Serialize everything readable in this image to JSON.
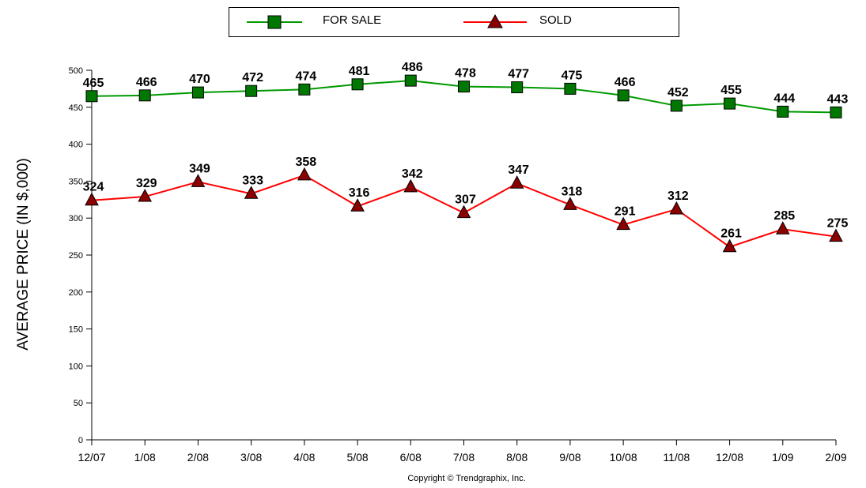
{
  "chart_data": {
    "type": "line",
    "ylabel": "AVERAGE PRICE (IN $,000)",
    "ylim": [
      0,
      500
    ],
    "yticks": [
      0,
      50,
      100,
      150,
      200,
      250,
      300,
      350,
      400,
      450,
      500
    ],
    "categories": [
      "12/07",
      "1/08",
      "2/08",
      "3/08",
      "4/08",
      "5/08",
      "6/08",
      "7/08",
      "8/08",
      "9/08",
      "10/08",
      "11/08",
      "12/08",
      "1/09",
      "2/09"
    ],
    "series": [
      {
        "name": "FOR SALE",
        "marker": "square",
        "color": "#009900",
        "marker_color": "#007700",
        "values": [
          465,
          466,
          470,
          472,
          474,
          481,
          486,
          478,
          477,
          475,
          466,
          452,
          455,
          444,
          443
        ]
      },
      {
        "name": "SOLD",
        "marker": "triangle",
        "color": "#ff0000",
        "marker_color": "#8b0000",
        "values": [
          324,
          329,
          349,
          333,
          358,
          316,
          342,
          307,
          347,
          318,
          291,
          312,
          261,
          285,
          275
        ]
      }
    ],
    "grid": false,
    "legend_position": "top"
  },
  "footer": {
    "copyright": "Copyright © Trendgraphix, Inc."
  }
}
